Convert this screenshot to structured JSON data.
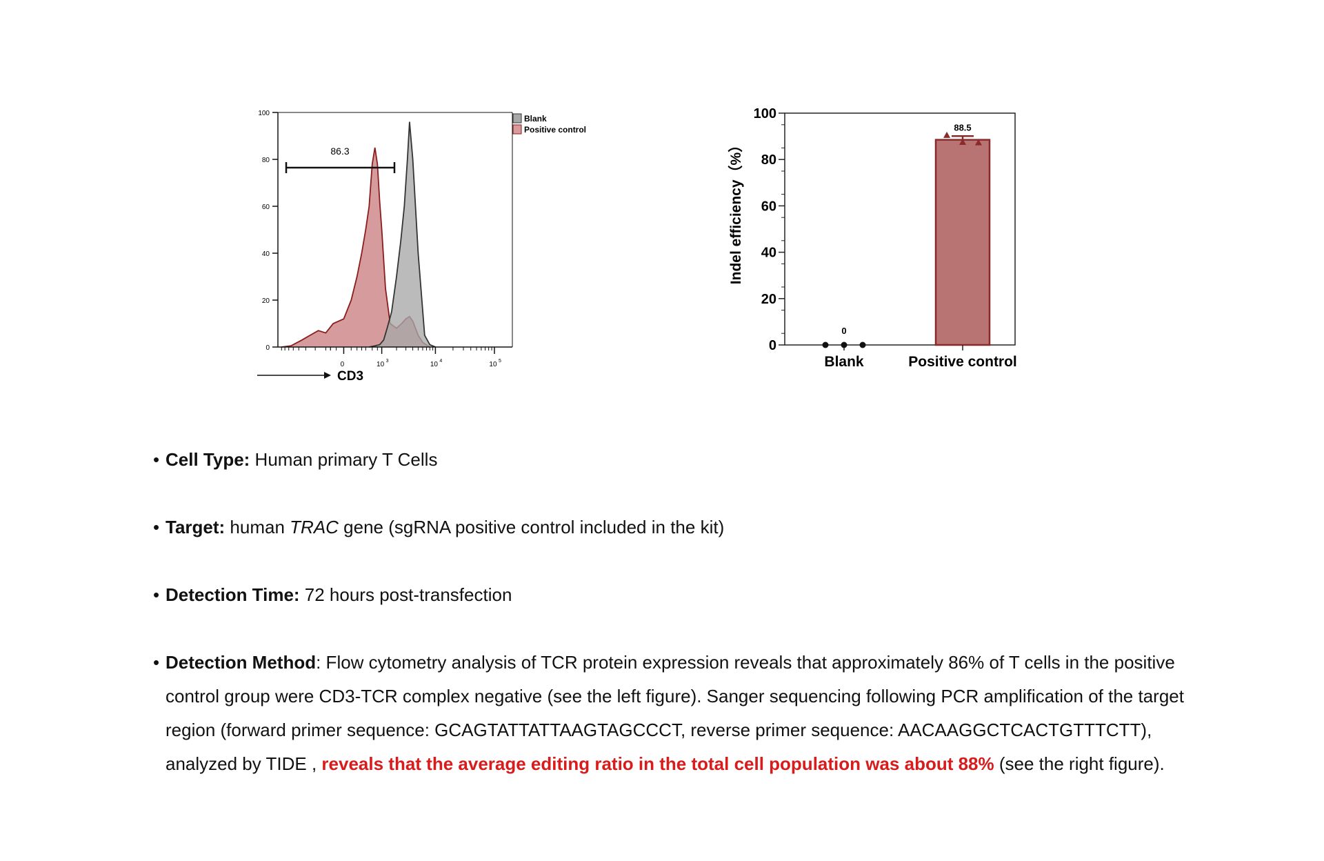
{
  "chart_data": [
    {
      "type": "area",
      "chart": "flow-cytometry-histogram",
      "xlabel": "CD3",
      "x_scale": "biexponential",
      "x_tick_labels": [
        "0",
        "10",
        "3",
        "10",
        "4",
        "10",
        "5"
      ],
      "y_ticks": [
        0,
        20,
        40,
        60,
        80,
        100
      ],
      "ylim": [
        0,
        100
      ],
      "legend": {
        "placement": "top-right",
        "items": [
          "Blank",
          "Positive control"
        ]
      },
      "gate": {
        "label": "86.3",
        "x_range": [
          -600,
          1200
        ],
        "y": 80
      },
      "series": [
        {
          "name": "Positive control",
          "color": "#c97f82",
          "stroke": "#8b1c1c",
          "x": [
            -3000,
            -2000,
            -1200,
            -800,
            -500,
            -300,
            -150,
            0,
            100,
            200,
            300,
            400,
            500,
            600,
            700,
            800,
            900,
            1000,
            1200,
            1500,
            2000,
            2500,
            3000,
            3500,
            4000,
            5000,
            6000,
            8000
          ],
          "y": [
            0,
            0.5,
            3,
            5,
            7,
            6,
            10,
            12,
            20,
            30,
            40,
            50,
            60,
            78,
            85,
            78,
            62,
            50,
            25,
            10,
            8,
            10,
            12,
            13,
            11,
            5,
            2,
            0
          ]
        },
        {
          "name": "Blank",
          "color": "#a8a8a8",
          "stroke": "#333333",
          "x": [
            500,
            700,
            900,
            1100,
            1300,
            1600,
            2000,
            2400,
            2800,
            3200,
            3500,
            4000,
            5000,
            6500,
            8000,
            10000
          ],
          "y": [
            0,
            0.5,
            1,
            3,
            8,
            15,
            30,
            45,
            60,
            80,
            96,
            80,
            40,
            5,
            1,
            0
          ]
        }
      ]
    },
    {
      "type": "bar",
      "categories": [
        "Blank",
        "Positive control"
      ],
      "values": [
        0,
        88.5
      ],
      "value_labels": [
        "0",
        "88.5"
      ],
      "error": [
        0,
        1.6
      ],
      "points": [
        [
          0,
          0,
          0
        ],
        [
          90.5,
          87.5,
          87.3
        ]
      ],
      "ylabel": "Indel efficiency（%）",
      "ylim": [
        0,
        100
      ],
      "y_ticks": [
        0,
        20,
        40,
        60,
        80,
        100
      ],
      "bar_color": "#b87373",
      "bar_stroke": "#8b2a2a"
    }
  ],
  "text": {
    "cell_type_label": "Cell Type:",
    "cell_type_value": " Human primary T Cells",
    "target_label": "Target:",
    "target_pre": " human ",
    "target_gene": "TRAC",
    "target_post": " gene (sgRNA positive control included in the kit)",
    "time_label": "Detection Time:",
    "time_value": " 72 hours post-transfection",
    "method_label": "Detection Method",
    "method_text": ": Flow cytometry analysis of TCR protein expression reveals that approximately 86% of T cells in the positive control group were CD3-TCR complex negative (see the left figure). Sanger sequencing following PCR amplification of the target region (forward primer sequence: GCAGTATTATTAAGTAGCCCT, reverse primer sequence: AACAAGGCTCACTGTTTCTT), analyzed by TIDE , ",
    "method_highlight": "reveals that  the average editing ratio in the total cell population was about 88%",
    "method_end": " (see the right figure)."
  }
}
